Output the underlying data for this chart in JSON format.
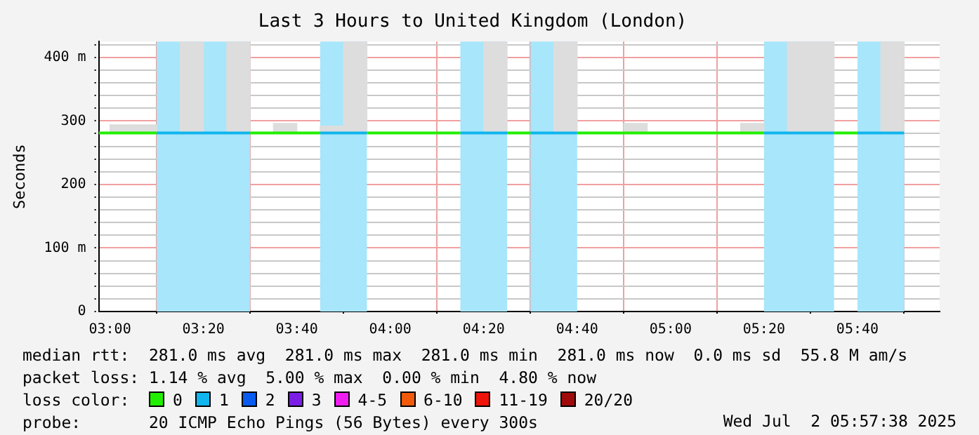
{
  "chart_data": {
    "type": "line",
    "title": "Last 3 Hours to United Kingdom (London)",
    "ylabel": "Seconds",
    "xlim": [
      2.96,
      5.96
    ],
    "xticks": [
      {
        "value": 3,
        "label": "03:00"
      },
      {
        "value": 3.3333,
        "label": "03:20"
      },
      {
        "value": 3.6667,
        "label": "03:40"
      },
      {
        "value": 4,
        "label": "04:00"
      },
      {
        "value": 4.3333,
        "label": "04:20"
      },
      {
        "value": 4.6667,
        "label": "04:40"
      },
      {
        "value": 5,
        "label": "05:00"
      },
      {
        "value": 5.3333,
        "label": "05:20"
      },
      {
        "value": 5.6667,
        "label": "05:40"
      }
    ],
    "ylim": [
      0,
      425
    ],
    "yticks": [
      0,
      {
        "value": 20,
        "label": null
      },
      {
        "value": 40,
        "label": null
      },
      {
        "value": 60,
        "label": null
      },
      {
        "value": 80,
        "label": null
      },
      {
        "value": 100,
        "label": "100 m"
      },
      {
        "value": 120,
        "label": null
      },
      {
        "value": 140,
        "label": null
      },
      {
        "value": 160,
        "label": null
      },
      {
        "value": 180,
        "label": null
      },
      200,
      {
        "value": 220,
        "label": null
      },
      {
        "value": 240,
        "label": null
      },
      {
        "value": 260,
        "label": null
      },
      {
        "value": 280,
        "label": null
      },
      300,
      {
        "value": 320,
        "label": null
      },
      {
        "value": 340,
        "label": null
      },
      {
        "value": 360,
        "label": null
      },
      {
        "value": 380,
        "label": null
      },
      {
        "value": 400,
        "label": "400 m"
      },
      {
        "value": 420,
        "label": null
      }
    ],
    "grid": true,
    "marker": "none",
    "legend": "bottom",
    "legend_title": "loss color:",
    "bands": [
      {
        "axis": "x",
        "from": 3.1667,
        "to": 3.5,
        "color": "#a7e6fb"
      },
      {
        "axis": "x",
        "from": 3.75,
        "to": 3.9167,
        "color": "#a7e6fb"
      },
      {
        "axis": "x",
        "from": 4.25,
        "to": 4.4167,
        "color": "#a7e6fb"
      },
      {
        "axis": "x",
        "from": 4.5,
        "to": 4.6667,
        "color": "#a7e6fb"
      },
      {
        "axis": "x",
        "from": 5.3333,
        "to": 5.5833,
        "color": "#a7e6fb"
      },
      {
        "axis": "x",
        "from": 5.6667,
        "to": 5.8333,
        "color": "#a7e6fb"
      }
    ],
    "series": [
      {
        "type": "bar",
        "color": "#dddddd",
        "x": [
          3.0417,
          3.125,
          3.2917,
          3.4583,
          3.625,
          3.7917,
          3.875,
          4.375,
          4.625,
          4.875,
          5.2917,
          5.4583,
          5.5417,
          5.7917
        ],
        "base": [
          281,
          281,
          281,
          281,
          281,
          281,
          281,
          281,
          281,
          281,
          281,
          281,
          281,
          281
        ],
        "values": [
          13,
          13,
          144,
          144,
          15,
          11,
          144,
          144,
          144,
          15,
          15,
          144,
          144,
          144
        ]
      },
      {
        "name": "0",
        "color": "#22ee00",
        "x": [
          2.96,
          3.1667,
          3.3,
          3.5,
          3.75,
          3.8,
          3.9167,
          4.25,
          4.3,
          4.4167,
          4.5,
          4.55,
          4.6667,
          5.3333,
          5.4,
          5.5833,
          5.6667
        ],
        "values": [
          281,
          281,
          null,
          281,
          281,
          null,
          281,
          281,
          null,
          281,
          281,
          null,
          281,
          281,
          null,
          281,
          281
        ]
      },
      {
        "name": "1",
        "color": "#11b5ee",
        "x": [
          3.1667,
          3.5,
          3.6,
          3.75,
          3.9167,
          4.0,
          4.25,
          4.4167,
          4.45,
          4.5,
          4.6667,
          5.0,
          5.3333,
          5.5833,
          5.6,
          5.6667,
          5.8333
        ],
        "values": [
          281,
          281,
          null,
          281,
          281,
          null,
          281,
          281,
          null,
          281,
          281,
          null,
          281,
          281,
          null,
          281,
          281
        ]
      },
      {
        "name": "2",
        "color": "#0a5cf0"
      },
      {
        "name": "3",
        "color": "#7a1ee6"
      },
      {
        "name": "4-5",
        "color": "#f01ef0"
      },
      {
        "name": "6-10",
        "color": "#f05a0a"
      },
      {
        "name": "11-19",
        "color": "#f0140a"
      },
      {
        "name": "20/20",
        "color": "#a00a0a"
      }
    ],
    "annotations": [
      "median rtt:  281.0 ms avg  281.0 ms max  281.0 ms min  281.0 ms now  0.0 ms sd  55.8 M am/s",
      "packet loss: 1.14 % avg  5.00 % max  0.00 % min  4.80 % now",
      "probe:       20 ICMP Echo Pings (56 Bytes) every 300s",
      "Wed Jul  2 05:57:38 2025"
    ]
  }
}
